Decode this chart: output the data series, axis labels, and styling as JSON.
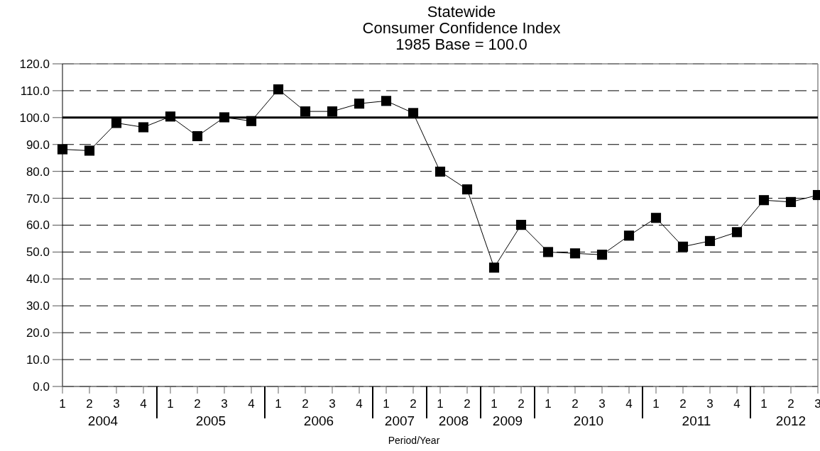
{
  "chart_data": {
    "type": "line",
    "title": "Statewide\nConsumer Confidence Index\n1985 Base = 100.0",
    "xlabel": "Period/Year",
    "categories": [
      "1",
      "2",
      "3",
      "4",
      "1",
      "2",
      "3",
      "4",
      "1",
      "2",
      "3",
      "4",
      "1",
      "2",
      "1",
      "2",
      "1",
      "2",
      "1",
      "2",
      "3",
      "4",
      "1",
      "2",
      "3",
      "4",
      "1",
      "2",
      "3"
    ],
    "annotations": [
      "2004",
      "2005",
      "2006",
      "2007",
      "2008",
      "2009",
      "2010",
      "2011",
      "2012"
    ],
    "series": [
      {
        "color": "#000000",
        "values": [
          88.2,
          87.7,
          98.0,
          96.4,
          100.4,
          93.1,
          100.1,
          98.7,
          110.5,
          102.3,
          102.3,
          105.2,
          106.2,
          101.7,
          79.9,
          73.3,
          44.2,
          60.1,
          50.0,
          49.5,
          49.0,
          56.1,
          62.7,
          52.0,
          54.1,
          57.4,
          69.3,
          68.6,
          71.2
        ]
      }
    ],
    "ylim": [
      0,
      120
    ],
    "yticks": [
      {
        "value": 0,
        "label": "0.0"
      },
      {
        "value": 10,
        "label": "10.0"
      },
      {
        "value": 20,
        "label": "20.0"
      },
      {
        "value": 30,
        "label": "30.0"
      },
      {
        "value": 40,
        "label": "40.0"
      },
      {
        "value": 50,
        "label": "50.0"
      },
      {
        "value": 60,
        "label": "60.0"
      },
      {
        "value": 70,
        "label": "70.0"
      },
      {
        "value": 80,
        "label": "80.0"
      },
      {
        "value": 90,
        "label": "90.0"
      },
      {
        "value": 100,
        "label": "100.0"
      },
      {
        "value": 110,
        "label": "110.0"
      },
      {
        "value": 120,
        "label": "120.0"
      }
    ],
    "ref_lines": [
      {
        "axis": "y",
        "value": 100,
        "color": "#000000"
      }
    ],
    "grid": "y",
    "marker": "square",
    "line_style": "solid"
  }
}
